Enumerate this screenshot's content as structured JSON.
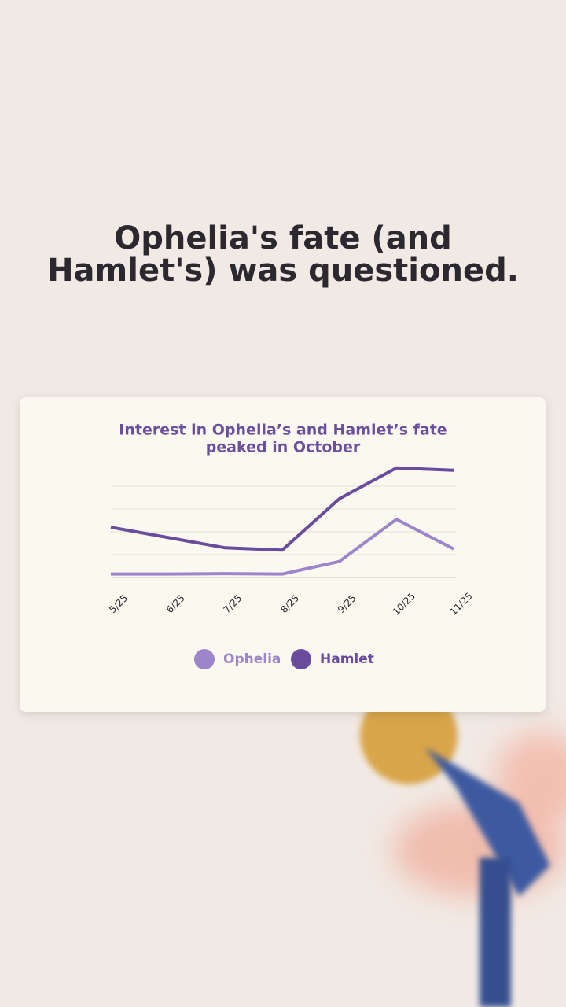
{
  "headline": [
    "Ophelia's fate (and",
    "Hamlet's) was questioned."
  ],
  "chart_data": {
    "type": "line",
    "title": [
      "Interest in Ophelia’s and Hamlet’s fate",
      "peaked in October"
    ],
    "categories": [
      "5/25",
      "6/25",
      "7/25",
      "8/25",
      "9/25",
      "10/25",
      "11/25"
    ],
    "series": [
      {
        "name": "Ophelia",
        "color": "#9c86c9",
        "values": [
          0.15,
          0.15,
          0.17,
          0.15,
          0.7,
          2.55,
          1.25
        ]
      },
      {
        "name": "Hamlet",
        "color": "#6a4c9c",
        "values": [
          2.2,
          1.75,
          1.3,
          1.2,
          3.45,
          4.8,
          4.7
        ]
      }
    ],
    "ylim": [
      0,
      5
    ],
    "yticks": [
      0,
      1,
      2,
      3,
      4
    ],
    "grid": true,
    "legend": "bottom"
  }
}
